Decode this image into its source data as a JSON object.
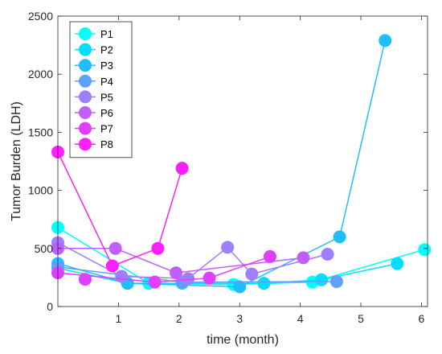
{
  "chart_data": {
    "type": "line",
    "title": "",
    "xlabel": "time (month)",
    "ylabel": "Tumor Burden (LDH)",
    "xlim": [
      0,
      6.1
    ],
    "ylim": [
      0,
      2500
    ],
    "xticks": [
      1,
      2,
      3,
      4,
      5,
      6
    ],
    "yticks": [
      0,
      500,
      1000,
      1500,
      2000,
      2500
    ],
    "grid": false,
    "legend_position": "top-left",
    "series": [
      {
        "name": "P1",
        "color": "#00FFFF",
        "x": [
          0,
          1.5,
          2.9,
          4.2,
          6.05
        ],
        "y": [
          680,
          200,
          190,
          210,
          490
        ]
      },
      {
        "name": "P2",
        "color": "#00DFFF",
        "x": [
          0,
          1.15,
          2.05,
          3.4,
          4.35,
          5.6
        ],
        "y": [
          330,
          200,
          200,
          200,
          230,
          370
        ]
      },
      {
        "name": "P3",
        "color": "#1FBFFF",
        "x": [
          0,
          1.15,
          3.0,
          4.65,
          5.4
        ],
        "y": [
          370,
          200,
          170,
          600,
          2290
        ]
      },
      {
        "name": "P4",
        "color": "#5F9FFF",
        "x": [
          0,
          2.05,
          4.6
        ],
        "y": [
          340,
          210,
          215
        ]
      },
      {
        "name": "P5",
        "color": "#9F7FFF",
        "x": [
          0,
          1.05,
          2.15,
          2.8,
          3.2,
          4.45
        ],
        "y": [
          550,
          260,
          240,
          510,
          280,
          450
        ]
      },
      {
        "name": "P6",
        "color": "#BF5FFF",
        "x": [
          0,
          0.95,
          1.95,
          4.05
        ],
        "y": [
          500,
          500,
          290,
          420
        ]
      },
      {
        "name": "P7",
        "color": "#DF3FFF",
        "x": [
          0,
          1.6,
          2.5,
          3.5
        ],
        "y": [
          290,
          210,
          245,
          430
        ]
      },
      {
        "name": "P8",
        "color": "#FF1FFF",
        "x": [
          0,
          0.9,
          1.65,
          2.05
        ],
        "y": [
          1330,
          350,
          500,
          1190
        ]
      }
    ],
    "extra_points": [
      {
        "series": "P7",
        "x": 0.45,
        "y": 235
      }
    ]
  }
}
